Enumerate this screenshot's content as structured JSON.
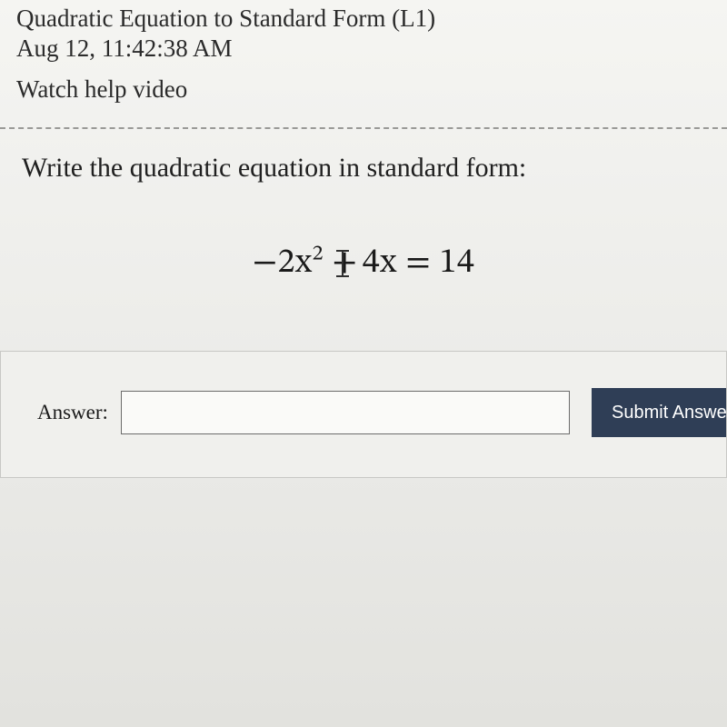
{
  "header": {
    "title": "Quadratic Equation to Standard Form (L1)",
    "timestamp": "Aug 12, 11:42:38 AM",
    "watch_link": "Watch help video"
  },
  "prompt": "Write the quadratic equation in standard form:",
  "equation": {
    "display": "−2x² + 4x = 14",
    "lhs_term1_coef": "−2",
    "lhs_term1_var": "x",
    "lhs_term1_exp": "2",
    "operator": "+",
    "lhs_term2": "4x",
    "eq": "=",
    "rhs": "14"
  },
  "answer": {
    "label": "Answer:",
    "value": "",
    "placeholder": ""
  },
  "submit": {
    "label": "Submit Answe"
  },
  "style": {
    "background": "#ebebe8",
    "header_font": "Comic Sans MS",
    "prompt_font": "Georgia",
    "equation_font": "Cambria Math",
    "submit_bg": "#2f3e56",
    "submit_fg": "#ffffff",
    "divider_color": "#9a9a97",
    "input_border": "#6b6b6b",
    "answer_box_border": "#c8c8c5",
    "title_fontsize": 27,
    "prompt_fontsize": 30,
    "equation_fontsize": 38,
    "answer_label_fontsize": 23,
    "submit_fontsize": 20
  }
}
